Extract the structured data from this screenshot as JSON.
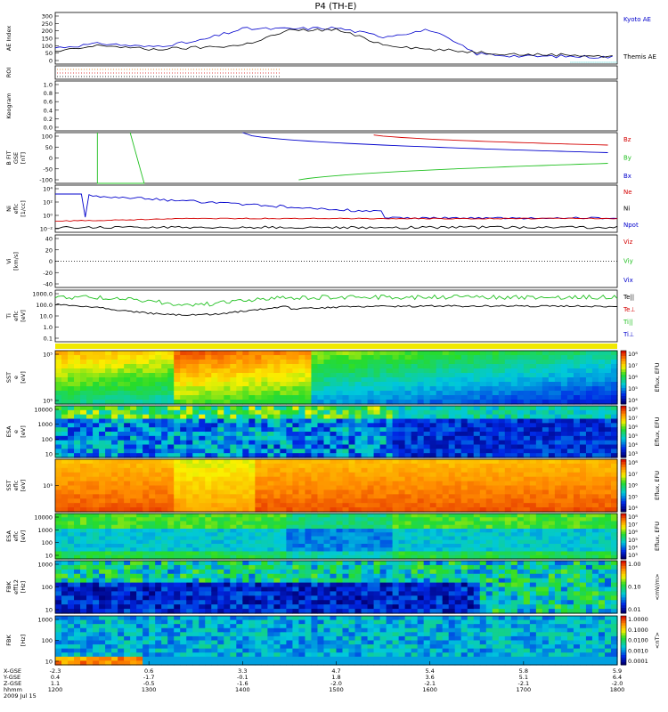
{
  "title": "P4 (TH-E)",
  "footer": {
    "row_labels": [
      "X-GSE",
      "Y-GSE",
      "Z-GSE",
      "hhmm",
      "2009 Jul 15"
    ],
    "columns": [
      {
        "x": "-2.3",
        "y": "0.4",
        "z": "1.1",
        "t": "1200"
      },
      {
        "x": "0.6",
        "y": "-1.7",
        "z": "-0.5",
        "t": "1300"
      },
      {
        "x": "3.3",
        "y": "-0.1",
        "z": "-1.6",
        "t": "1400"
      },
      {
        "x": "4.7",
        "y": "1.8",
        "z": "-2.0",
        "t": "1500"
      },
      {
        "x": "5.4",
        "y": "3.6",
        "z": "-2.1",
        "t": "1600"
      },
      {
        "x": "5.8",
        "y": "5.1",
        "z": "-2.1",
        "t": "1700"
      },
      {
        "x": "5.9",
        "y": "6.4",
        "z": "-2.0",
        "t": "1800"
      }
    ]
  },
  "colors": {
    "red": "#d40000",
    "green": "#20c020",
    "blue": "#0000cc",
    "black": "#000000",
    "orange": "#e07000"
  },
  "chart_data": [
    {
      "type": "line",
      "id": "ae",
      "ylabel": [
        "AE Index"
      ],
      "yticks": [
        "300",
        "250",
        "200",
        "150",
        "100",
        "50",
        "0"
      ],
      "ylim": [
        0,
        300
      ],
      "legend": [
        {
          "name": "Kyoto AE",
          "color": "#0000cc"
        },
        {
          "name": "Themis AE",
          "color": "#000000"
        }
      ],
      "x": [
        12.0,
        12.5,
        13.0,
        13.5,
        14.0,
        14.5,
        15.0,
        15.5,
        16.0,
        16.5,
        17.0,
        17.5,
        18.0
      ],
      "series": [
        {
          "name": "Kyoto AE",
          "values": [
            95,
            120,
            100,
            130,
            205,
            205,
            210,
            160,
            200,
            60,
            45,
            45,
            40
          ]
        },
        {
          "name": "Themis AE",
          "values": [
            70,
            110,
            85,
            95,
            110,
            195,
            200,
            115,
            85,
            70,
            55,
            55,
            40
          ]
        }
      ]
    },
    {
      "type": "line",
      "id": "roi",
      "ylabel": [
        "ROI"
      ]
    },
    {
      "type": "line",
      "id": "keogram",
      "ylabel": [
        "Keogram"
      ],
      "yticks": [
        "1.0",
        "0.8",
        "0.6",
        "0.4",
        "0.2",
        "0.0"
      ],
      "ylim": [
        0,
        1
      ]
    },
    {
      "type": "line",
      "id": "bfit",
      "ylabel": [
        "B FIT",
        "GSE",
        "[nT]"
      ],
      "yticks": [
        "100",
        "50",
        "0",
        "-50",
        "-100"
      ],
      "ylim": [
        -100,
        100
      ],
      "legend": [
        {
          "name": "Bz",
          "color": "#d40000"
        },
        {
          "name": "By",
          "color": "#20c020"
        },
        {
          "name": "Bx",
          "color": "#0000cc"
        }
      ]
    },
    {
      "type": "line",
      "id": "ni",
      "ylabel": [
        "Ni",
        "eflc",
        "[1/cc]"
      ],
      "yticks": [
        "10⁴",
        "10²",
        "10⁰",
        "10⁻²"
      ],
      "legend": [
        {
          "name": "Ne",
          "color": "#d40000"
        },
        {
          "name": "Ni",
          "color": "#000000"
        },
        {
          "name": "Npot",
          "color": "#0000cc"
        }
      ]
    },
    {
      "type": "line",
      "id": "vi",
      "ylabel": [
        "Vi",
        "[km/s]"
      ],
      "yticks": [
        "40",
        "20",
        "0",
        "-20",
        "-40"
      ],
      "ylim": [
        -50,
        50
      ],
      "legend": [
        {
          "name": "Viz",
          "color": "#d40000"
        },
        {
          "name": "Viy",
          "color": "#20c020"
        },
        {
          "name": "Vix",
          "color": "#0000cc"
        }
      ]
    },
    {
      "type": "line",
      "id": "ti",
      "ylabel": [
        "Ti",
        "eflc",
        "[eV]"
      ],
      "yticks": [
        "1000.0",
        "100.0",
        "10.0",
        "1.0",
        "0.1"
      ],
      "legend": [
        {
          "name": "Te||",
          "color": "#000000"
        },
        {
          "name": "Te⊥",
          "color": "#d40000"
        },
        {
          "name": "Ti||",
          "color": "#20c020"
        },
        {
          "name": "Ti⊥",
          "color": "#0000cc"
        }
      ]
    },
    {
      "type": "heatmap",
      "id": "sst_e",
      "ylabel": [
        "SST",
        "e",
        "[eV]"
      ],
      "yticks": [
        "10⁵",
        "10⁶"
      ],
      "cbar": {
        "ticks": [
          "10⁸",
          "10⁷",
          "10⁶",
          "10⁵",
          "10⁴"
        ],
        "label": "Eflux, EFU"
      }
    },
    {
      "type": "heatmap",
      "id": "esa_e",
      "ylabel": [
        "ESA",
        "e",
        "[eV]"
      ],
      "yticks": [
        "10000",
        "1000",
        "100",
        "10"
      ],
      "cbar": {
        "ticks": [
          "10⁸",
          "10⁷",
          "10⁶",
          "10⁵",
          "10⁴",
          "10³"
        ],
        "label": "Eflux, EFU"
      }
    },
    {
      "type": "heatmap",
      "id": "sst_i",
      "ylabel": [
        "SST",
        "eflc",
        "[eV]"
      ],
      "yticks": [
        "10⁵"
      ],
      "cbar": {
        "ticks": [
          "10⁸",
          "10⁷",
          "10⁶",
          "10⁵",
          "10⁴"
        ],
        "label": "Eflux, EFU"
      }
    },
    {
      "type": "heatmap",
      "id": "esa_i",
      "ylabel": [
        "ESA",
        "eflc",
        "[eV]"
      ],
      "yticks": [
        "10000",
        "1000",
        "100",
        "10"
      ],
      "cbar": {
        "ticks": [
          "10⁸",
          "10⁷",
          "10⁶",
          "10⁵",
          "10⁴",
          "10³"
        ],
        "label": "Eflux, EFU"
      }
    },
    {
      "type": "heatmap",
      "id": "fbk_e",
      "ylabel": [
        "FBK",
        "eff12",
        "[Hz]"
      ],
      "yticks": [
        "1000",
        "100",
        "10"
      ],
      "cbar": {
        "ticks": [
          "1.00",
          "0.10",
          "0.01"
        ],
        "label": "<mV/m>"
      }
    },
    {
      "type": "heatmap",
      "id": "fbk_b",
      "ylabel": [
        "FBK",
        "",
        "[Hz]"
      ],
      "yticks": [
        "1000",
        "100",
        "10"
      ],
      "cbar": {
        "ticks": [
          "1.0000",
          "0.1000",
          "0.0100",
          "0.0010",
          "0.0001"
        ],
        "label": "<nT>"
      }
    }
  ]
}
